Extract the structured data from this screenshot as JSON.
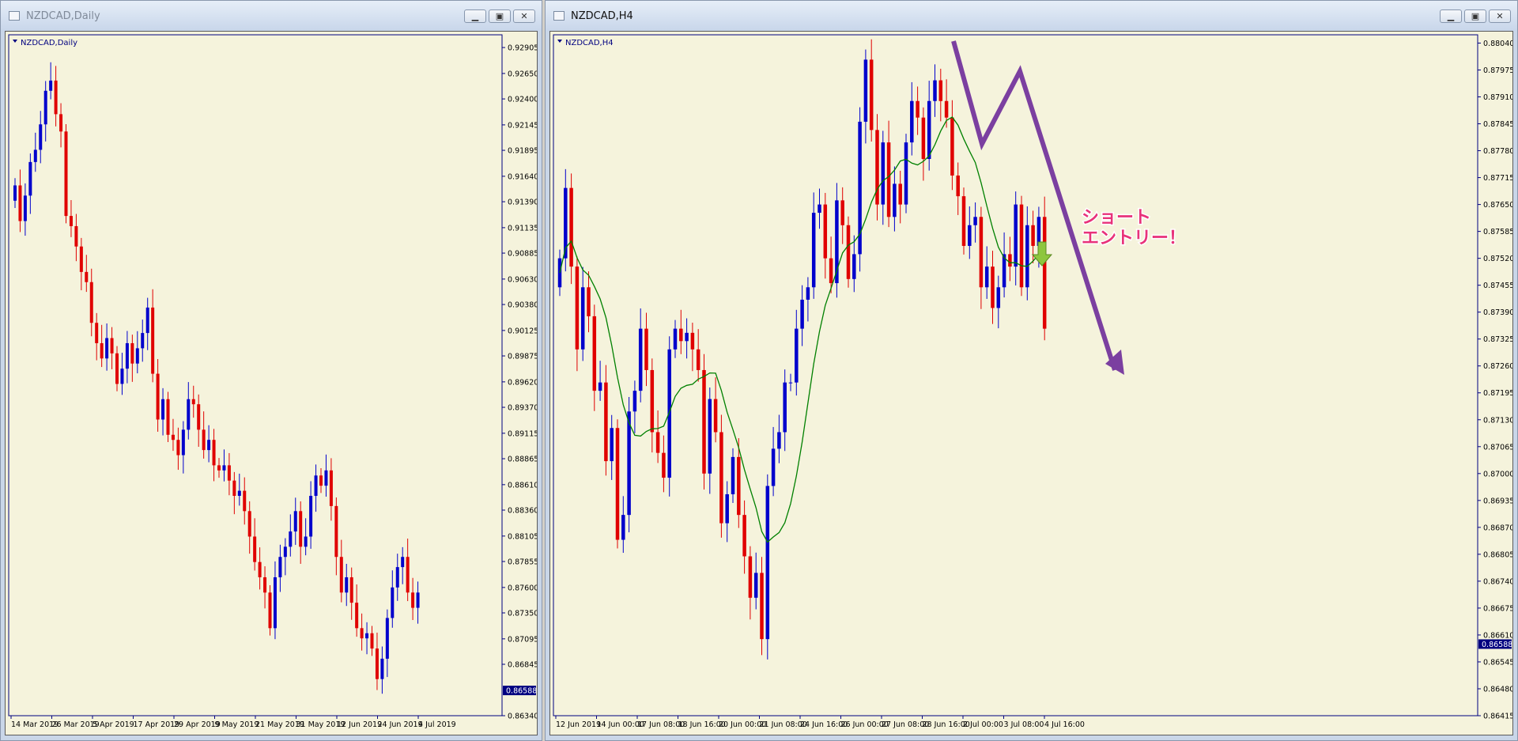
{
  "colors": {
    "bull": "#0000cc",
    "bear": "#e00000",
    "ma": "#008000",
    "arrow": "#7b3fa0",
    "annotation": "#e8327a",
    "bg": "#f5f3dc",
    "axis": "#000080"
  },
  "windows": [
    {
      "title": "NZDCAD,Daily",
      "active": false,
      "icon": "chart-window-icon",
      "buttons": {
        "minimize": "minimize-icon",
        "restore": "restore-icon",
        "close": "close-icon"
      },
      "chart_label": "NZDCAD,Daily",
      "price_labels": [
        "0.92905",
        "0.92650",
        "0.92400",
        "0.92145",
        "0.91895",
        "0.91640",
        "0.91390",
        "0.91135",
        "0.90885",
        "0.90630",
        "0.90380",
        "0.90125",
        "0.89875",
        "0.89620",
        "0.89370",
        "0.89115",
        "0.88865",
        "0.88610",
        "0.88360",
        "0.88105",
        "0.87855",
        "0.87600",
        "0.87350",
        "0.87095",
        "0.86845",
        "0.86340"
      ],
      "current_price": "0.86588",
      "time_labels": [
        "14 Mar 2019",
        "26 Mar 2019",
        "5 Apr 2019",
        "17 Apr 2019",
        "29 Apr 2019",
        "9 May 2019",
        "21 May 2019",
        "31 May 2019",
        "12 Jun 2019",
        "24 Jun 2019",
        "4 Jul 2019"
      ]
    },
    {
      "title": "NZDCAD,H4",
      "active": true,
      "icon": "chart-window-icon",
      "buttons": {
        "minimize": "minimize-icon",
        "restore": "restore-icon",
        "close": "close-icon"
      },
      "chart_label": "NZDCAD,H4",
      "price_labels": [
        "0.88040",
        "0.87975",
        "0.87910",
        "0.87845",
        "0.87780",
        "0.87715",
        "0.87650",
        "0.87585",
        "0.87520",
        "0.87455",
        "0.87390",
        "0.87325",
        "0.87260",
        "0.87195",
        "0.87130",
        "0.87065",
        "0.87000",
        "0.86935",
        "0.86870",
        "0.86805",
        "0.86740",
        "0.86675",
        "0.86610",
        "0.86545",
        "0.86480",
        "0.86415"
      ],
      "current_price": "0.86588",
      "time_labels": [
        "12 Jun 2019",
        "14 Jun 00:00",
        "17 Jun 08:00",
        "18 Jun 16:00",
        "20 Jun 00:00",
        "21 Jun 08:00",
        "24 Jun 16:00",
        "26 Jun 00:00",
        "27 Jun 08:00",
        "28 Jun 16:00",
        "2 Jul 00:00",
        "3 Jul 08:00",
        "4 Jul 16:00"
      ],
      "annotation": {
        "line1": "ショート",
        "line2": "エントリー！"
      }
    }
  ],
  "chart_data": [
    {
      "type": "candlestick",
      "title": "NZDCAD,Daily",
      "ylim": [
        0.8634,
        0.9303
      ],
      "x": [
        "14 Mar 2019",
        "26 Mar 2019",
        "5 Apr 2019",
        "17 Apr 2019",
        "29 Apr 2019",
        "9 May 2019",
        "21 May 2019",
        "31 May 2019",
        "12 Jun 2019",
        "24 Jun 2019",
        "4 Jul 2019"
      ],
      "closes": [
        0.9155,
        0.912,
        0.9145,
        0.9178,
        0.919,
        0.9215,
        0.9248,
        0.9258,
        0.9225,
        0.9208,
        0.9125,
        0.9115,
        0.9095,
        0.907,
        0.906,
        0.902,
        0.9,
        0.8985,
        0.9005,
        0.899,
        0.896,
        0.8975,
        0.9,
        0.898,
        0.8995,
        0.901,
        0.9035,
        0.897,
        0.8925,
        0.8945,
        0.891,
        0.8905,
        0.889,
        0.8915,
        0.8945,
        0.894,
        0.8915,
        0.8895,
        0.8905,
        0.888,
        0.8875,
        0.888,
        0.8865,
        0.885,
        0.8855,
        0.8835,
        0.881,
        0.8785,
        0.877,
        0.8755,
        0.872,
        0.877,
        0.879,
        0.88,
        0.8815,
        0.8835,
        0.88,
        0.881,
        0.885,
        0.887,
        0.886,
        0.8875,
        0.884,
        0.879,
        0.8755,
        0.877,
        0.8745,
        0.872,
        0.871,
        0.8715,
        0.87,
        0.867,
        0.869,
        0.873,
        0.876,
        0.878,
        0.879,
        0.8755,
        0.874,
        0.8755
      ],
      "current_price": 0.86588
    },
    {
      "type": "candlestick",
      "title": "NZDCAD,H4",
      "ylim": [
        0.86415,
        0.8806
      ],
      "x": [
        "12 Jun 2019",
        "14 Jun 00:00",
        "17 Jun 08:00",
        "18 Jun 16:00",
        "20 Jun 00:00",
        "21 Jun 08:00",
        "24 Jun 16:00",
        "26 Jun 00:00",
        "27 Jun 08:00",
        "28 Jun 16:00",
        "2 Jul 00:00",
        "3 Jul 08:00",
        "4 Jul 16:00"
      ],
      "closes": [
        0.8752,
        0.8769,
        0.875,
        0.873,
        0.8745,
        0.8738,
        0.872,
        0.8722,
        0.8703,
        0.8711,
        0.8684,
        0.869,
        0.8715,
        0.872,
        0.8735,
        0.8725,
        0.871,
        0.8705,
        0.8699,
        0.873,
        0.8735,
        0.8732,
        0.8734,
        0.873,
        0.8725,
        0.87,
        0.8718,
        0.871,
        0.8688,
        0.8695,
        0.8704,
        0.869,
        0.868,
        0.867,
        0.8676,
        0.866,
        0.8697,
        0.8706,
        0.871,
        0.8722,
        0.8722,
        0.8735,
        0.8742,
        0.8745,
        0.8763,
        0.8765,
        0.8752,
        0.8746,
        0.8766,
        0.876,
        0.8747,
        0.8753,
        0.8785,
        0.88,
        0.8783,
        0.8765,
        0.878,
        0.8762,
        0.877,
        0.8765,
        0.878,
        0.879,
        0.8786,
        0.8776,
        0.879,
        0.8795,
        0.879,
        0.8786,
        0.8772,
        0.8767,
        0.8755,
        0.876,
        0.8762,
        0.8745,
        0.875,
        0.874,
        0.8745,
        0.8753,
        0.875,
        0.8765,
        0.8745,
        0.876,
        0.8755,
        0.8762,
        0.8735
      ],
      "ma_label": "moving average",
      "current_price": 0.86588
    }
  ]
}
